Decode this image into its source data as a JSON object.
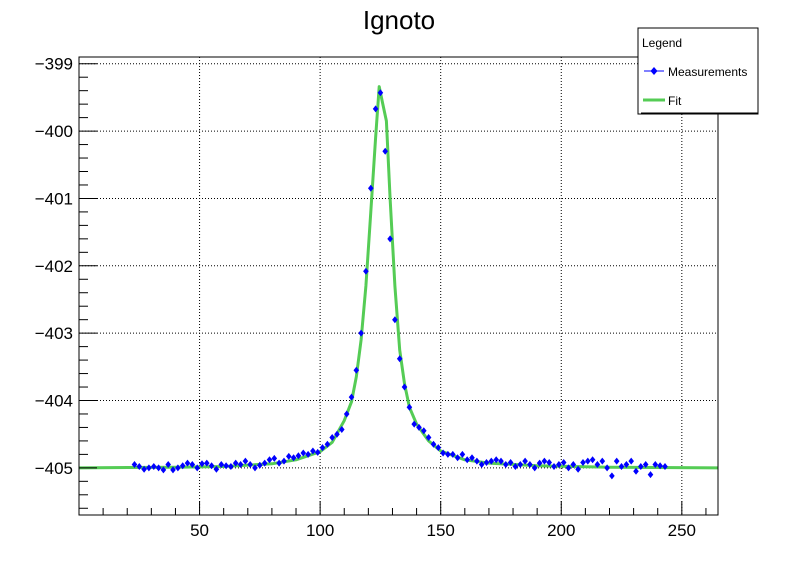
{
  "chart_data": {
    "type": "scatter",
    "title": "Ignoto",
    "xlabel": "",
    "ylabel": "",
    "xlim": [
      0,
      265
    ],
    "ylim": [
      -405.7,
      -398.9
    ],
    "x_ticks": [
      50,
      100,
      150,
      200,
      250
    ],
    "y_ticks": [
      -405,
      -404,
      -403,
      -402,
      -401,
      -400,
      -399
    ],
    "grid": true,
    "legend": {
      "title": "Legend",
      "position": "top-right",
      "entries": [
        "Measurements",
        "Fit"
      ]
    },
    "series": [
      {
        "name": "Measurements",
        "color": "#0000ff",
        "marker": "diamond",
        "points": [
          [
            23,
            -404.95
          ],
          [
            25,
            -404.98
          ],
          [
            27,
            -405.02
          ],
          [
            29,
            -405.0
          ],
          [
            31,
            -404.98
          ],
          [
            33,
            -405.0
          ],
          [
            35,
            -405.03
          ],
          [
            37,
            -404.95
          ],
          [
            39,
            -405.03
          ],
          [
            41,
            -405.0
          ],
          [
            43,
            -404.97
          ],
          [
            45,
            -404.93
          ],
          [
            47,
            -404.95
          ],
          [
            49,
            -405.0
          ],
          [
            51,
            -404.94
          ],
          [
            53,
            -404.93
          ],
          [
            55,
            -404.97
          ],
          [
            57,
            -405.02
          ],
          [
            59,
            -404.95
          ],
          [
            61,
            -404.97
          ],
          [
            63,
            -404.98
          ],
          [
            65,
            -404.93
          ],
          [
            67,
            -404.95
          ],
          [
            69,
            -404.9
          ],
          [
            71,
            -404.95
          ],
          [
            73,
            -405.0
          ],
          [
            75,
            -404.96
          ],
          [
            77,
            -404.93
          ],
          [
            79,
            -404.88
          ],
          [
            81,
            -404.86
          ],
          [
            83,
            -404.93
          ],
          [
            85,
            -404.9
          ],
          [
            87,
            -404.83
          ],
          [
            89,
            -404.85
          ],
          [
            91,
            -404.82
          ],
          [
            93,
            -404.78
          ],
          [
            95,
            -404.8
          ],
          [
            97,
            -404.75
          ],
          [
            99,
            -404.77
          ],
          [
            101,
            -404.7
          ],
          [
            103,
            -404.65
          ],
          [
            105,
            -404.55
          ],
          [
            107,
            -404.5
          ],
          [
            109,
            -404.43
          ],
          [
            111,
            -404.2
          ],
          [
            113,
            -403.95
          ],
          [
            115,
            -403.55
          ],
          [
            117,
            -403.0
          ],
          [
            119,
            -402.08
          ],
          [
            121,
            -400.85
          ],
          [
            123,
            -399.67
          ],
          [
            125,
            -399.43
          ],
          [
            127,
            -400.3
          ],
          [
            129,
            -401.6
          ],
          [
            131,
            -402.8
          ],
          [
            133,
            -403.38
          ],
          [
            135,
            -403.8
          ],
          [
            137,
            -404.1
          ],
          [
            139,
            -404.35
          ],
          [
            141,
            -404.4
          ],
          [
            143,
            -404.45
          ],
          [
            145,
            -404.55
          ],
          [
            147,
            -404.65
          ],
          [
            149,
            -404.7
          ],
          [
            151,
            -404.78
          ],
          [
            153,
            -404.8
          ],
          [
            155,
            -404.8
          ],
          [
            157,
            -404.85
          ],
          [
            159,
            -404.8
          ],
          [
            161,
            -404.88
          ],
          [
            163,
            -404.85
          ],
          [
            165,
            -404.9
          ],
          [
            167,
            -404.95
          ],
          [
            169,
            -404.92
          ],
          [
            171,
            -404.9
          ],
          [
            173,
            -404.88
          ],
          [
            175,
            -404.9
          ],
          [
            177,
            -404.95
          ],
          [
            179,
            -404.92
          ],
          [
            181,
            -404.98
          ],
          [
            183,
            -404.95
          ],
          [
            185,
            -404.9
          ],
          [
            187,
            -404.95
          ],
          [
            189,
            -405.0
          ],
          [
            191,
            -404.93
          ],
          [
            193,
            -404.9
          ],
          [
            195,
            -404.92
          ],
          [
            197,
            -404.98
          ],
          [
            199,
            -404.95
          ],
          [
            201,
            -404.92
          ],
          [
            203,
            -405.0
          ],
          [
            205,
            -404.95
          ],
          [
            207,
            -405.02
          ],
          [
            209,
            -404.92
          ],
          [
            211,
            -404.9
          ],
          [
            213,
            -404.88
          ],
          [
            215,
            -404.95
          ],
          [
            217,
            -404.9
          ],
          [
            219,
            -405.0
          ],
          [
            221,
            -405.12
          ],
          [
            223,
            -404.9
          ],
          [
            225,
            -404.98
          ],
          [
            227,
            -404.95
          ],
          [
            229,
            -404.9
          ],
          [
            231,
            -405.05
          ],
          [
            233,
            -404.98
          ],
          [
            235,
            -404.95
          ],
          [
            237,
            -405.1
          ],
          [
            239,
            -404.95
          ],
          [
            241,
            -404.97
          ],
          [
            243,
            -404.98
          ]
        ]
      },
      {
        "name": "Fit",
        "color": "#55cc55",
        "points": [
          [
            0,
            -405.0
          ],
          [
            40,
            -404.99
          ],
          [
            60,
            -404.98
          ],
          [
            80,
            -404.94
          ],
          [
            90,
            -404.88
          ],
          [
            100,
            -404.76
          ],
          [
            105,
            -404.62
          ],
          [
            110,
            -404.3
          ],
          [
            113,
            -404.02
          ],
          [
            115,
            -403.65
          ],
          [
            117,
            -403.1
          ],
          [
            119,
            -402.3
          ],
          [
            121,
            -401.2
          ],
          [
            123,
            -400.1
          ],
          [
            124.5,
            -399.34
          ],
          [
            126,
            -399.6
          ],
          [
            127.5,
            -399.85
          ],
          [
            129,
            -401.0
          ],
          [
            131,
            -402.3
          ],
          [
            133,
            -403.25
          ],
          [
            135,
            -403.75
          ],
          [
            137,
            -404.1
          ],
          [
            140,
            -404.35
          ],
          [
            145,
            -404.6
          ],
          [
            150,
            -404.75
          ],
          [
            160,
            -404.88
          ],
          [
            170,
            -404.93
          ],
          [
            190,
            -404.97
          ],
          [
            220,
            -404.99
          ],
          [
            265,
            -405.0
          ]
        ]
      }
    ]
  }
}
